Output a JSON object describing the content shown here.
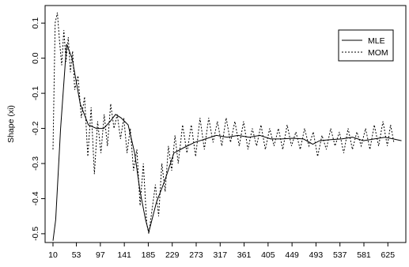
{
  "chart_data": {
    "type": "line",
    "title": "",
    "xlabel": "",
    "ylabel": "Shape (xi)",
    "xlim": [
      -4.5,
      658
    ],
    "ylim": [
      -0.525,
      0.15
    ],
    "x_ticks": [
      10,
      53,
      97,
      141,
      185,
      229,
      273,
      317,
      361,
      405,
      449,
      493,
      537,
      581,
      625
    ],
    "y_ticks": [
      0.1,
      0.0,
      -0.1,
      -0.2,
      -0.3,
      -0.4,
      -0.5
    ],
    "y_tick_labels": [
      "0.1",
      "0.0",
      "-0.1",
      "-0.2",
      "-0.3",
      "-0.4",
      "-0.5"
    ],
    "grid": false,
    "legend_position": "top-right",
    "series": [
      {
        "name": "MLE",
        "style": "solid",
        "x": [
          10,
          15,
          24,
          35,
          45,
          60,
          75,
          90,
          103,
          115,
          125,
          135,
          148,
          160,
          170,
          180,
          186,
          200,
          215,
          232,
          250,
          270,
          290,
          310,
          330,
          350,
          370,
          390,
          410,
          430,
          450,
          470,
          487,
          500,
          520,
          540,
          560,
          580,
          600,
          620,
          635,
          650
        ],
        "y": [
          -0.52,
          -0.46,
          -0.2,
          0.04,
          0.0,
          -0.13,
          -0.19,
          -0.2,
          -0.2,
          -0.18,
          -0.16,
          -0.17,
          -0.19,
          -0.27,
          -0.38,
          -0.46,
          -0.495,
          -0.41,
          -0.35,
          -0.27,
          -0.255,
          -0.24,
          -0.23,
          -0.22,
          -0.225,
          -0.22,
          -0.225,
          -0.22,
          -0.23,
          -0.23,
          -0.228,
          -0.23,
          -0.245,
          -0.235,
          -0.232,
          -0.23,
          -0.225,
          -0.235,
          -0.23,
          -0.225,
          -0.23,
          -0.235
        ]
      },
      {
        "name": "MOM",
        "style": "dashed",
        "x": [
          10,
          14,
          18,
          22,
          26,
          30,
          34,
          38,
          42,
          46,
          50,
          56,
          62,
          68,
          74,
          80,
          86,
          92,
          98,
          104,
          110,
          116,
          122,
          128,
          134,
          140,
          146,
          152,
          158,
          164,
          170,
          176,
          182,
          186,
          192,
          198,
          204,
          210,
          216,
          222,
          228,
          234,
          240,
          248,
          256,
          264,
          272,
          280,
          288,
          296,
          304,
          312,
          320,
          328,
          336,
          344,
          352,
          360,
          368,
          376,
          384,
          392,
          400,
          408,
          416,
          424,
          432,
          440,
          448,
          456,
          464,
          472,
          480,
          488,
          496,
          504,
          512,
          520,
          528,
          536,
          544,
          552,
          560,
          568,
          576,
          584,
          592,
          600,
          608,
          616,
          624,
          630,
          636
        ],
        "y": [
          -0.26,
          0.1,
          0.13,
          0.05,
          -0.02,
          0.08,
          -0.01,
          0.06,
          -0.04,
          0.02,
          -0.09,
          -0.05,
          -0.17,
          -0.11,
          -0.28,
          -0.14,
          -0.33,
          -0.18,
          -0.27,
          -0.16,
          -0.25,
          -0.13,
          -0.2,
          -0.16,
          -0.23,
          -0.17,
          -0.27,
          -0.2,
          -0.32,
          -0.26,
          -0.42,
          -0.3,
          -0.47,
          -0.5,
          -0.43,
          -0.36,
          -0.45,
          -0.3,
          -0.38,
          -0.25,
          -0.32,
          -0.22,
          -0.3,
          -0.19,
          -0.27,
          -0.19,
          -0.28,
          -0.17,
          -0.26,
          -0.17,
          -0.24,
          -0.18,
          -0.25,
          -0.17,
          -0.24,
          -0.18,
          -0.25,
          -0.18,
          -0.26,
          -0.2,
          -0.25,
          -0.19,
          -0.26,
          -0.2,
          -0.25,
          -0.2,
          -0.26,
          -0.19,
          -0.25,
          -0.21,
          -0.26,
          -0.2,
          -0.25,
          -0.21,
          -0.28,
          -0.22,
          -0.26,
          -0.2,
          -0.25,
          -0.21,
          -0.27,
          -0.2,
          -0.26,
          -0.21,
          -0.25,
          -0.2,
          -0.26,
          -0.19,
          -0.25,
          -0.18,
          -0.25,
          -0.19,
          -0.24
        ]
      }
    ]
  }
}
